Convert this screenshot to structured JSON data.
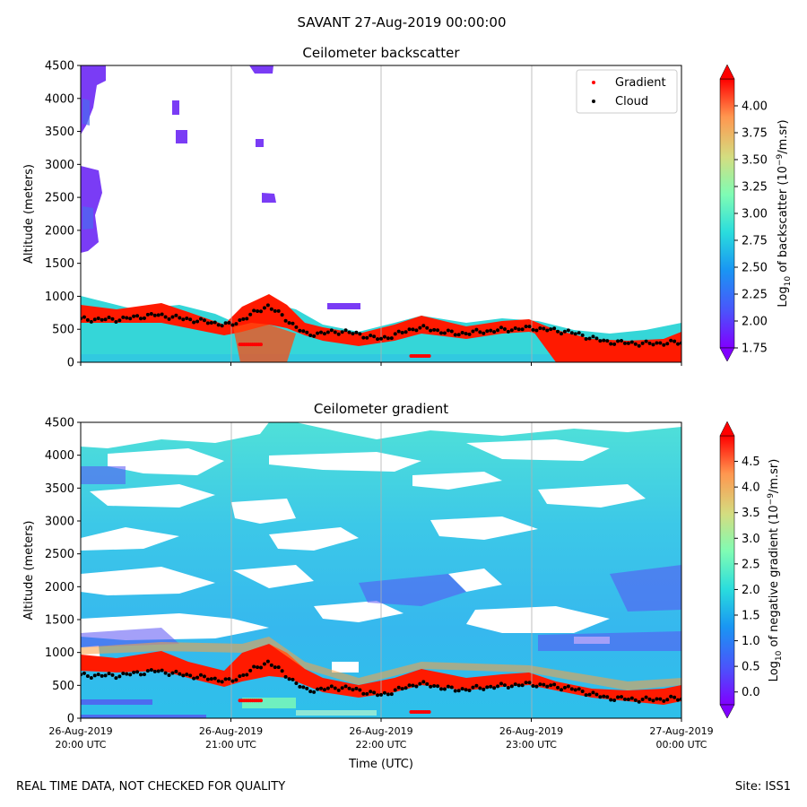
{
  "suptitle": "SAVANT 27-Aug-2019 00:00:00",
  "footer": {
    "left": "REAL TIME DATA, NOT CHECKED FOR QUALITY",
    "right": "Site: ISS1"
  },
  "colors": {
    "gradient_marker": "#ff0000",
    "cloud_marker": "#000000",
    "background": "#ffffff",
    "grid": "#b0b0b0"
  },
  "chart_data": [
    {
      "type": "heatmap",
      "title": "Ceilometer backscatter",
      "xlabel": "",
      "ylabel": "Altitude (meters)",
      "ylim": [
        0,
        4500
      ],
      "yticks": [
        0,
        500,
        1000,
        1500,
        2000,
        2500,
        3000,
        3500,
        4000,
        4500
      ],
      "xlim": [
        0,
        4
      ],
      "xticks": [
        0,
        1,
        2,
        3,
        4
      ],
      "xtick_labels": [],
      "grid": "vertical",
      "colorbar": {
        "label": "Log10 of backscatter (10^-9/m.sr)",
        "label_main": "Log",
        "label_sub": "10",
        "label_mid": " of backscatter (10",
        "label_sup": "−9",
        "label_end": "/m.sr)",
        "range": [
          1.75,
          4.25
        ],
        "ticks": [
          "1.75",
          "2.00",
          "2.25",
          "2.50",
          "2.75",
          "3.00",
          "3.25",
          "3.50",
          "3.75",
          "4.00"
        ],
        "extend": "both"
      },
      "legend": {
        "position": "top-right",
        "entries": [
          {
            "label": "Gradient",
            "color": "#ff0000"
          },
          {
            "label": "Cloud",
            "color": "#000000"
          }
        ]
      },
      "cloud_base": {
        "x": [
          0,
          0.25,
          0.5,
          0.75,
          1.0,
          1.25,
          1.5,
          1.75,
          2.0,
          2.25,
          2.5,
          2.75,
          3.0,
          3.25,
          3.5,
          3.75,
          4.0
        ],
        "y": [
          650,
          650,
          720,
          640,
          560,
          860,
          420,
          470,
          350,
          530,
          430,
          480,
          520,
          460,
          310,
          280,
          300
        ]
      },
      "gradient_segments": [
        {
          "x": [
            1.06,
            1.2
          ],
          "y": 270
        },
        {
          "x": [
            2.2,
            2.32
          ],
          "y": 95
        }
      ]
    },
    {
      "type": "heatmap",
      "title": "Ceilometer gradient",
      "xlabel": "Time (UTC)",
      "ylabel": "Altitude (meters)",
      "ylim": [
        0,
        4500
      ],
      "yticks": [
        0,
        500,
        1000,
        1500,
        2000,
        2500,
        3000,
        3500,
        4000,
        4500
      ],
      "xlim": [
        0,
        4
      ],
      "xticks": [
        0,
        1,
        2,
        3,
        4
      ],
      "xtick_labels": [
        {
          "date": "26-Aug-2019",
          "time": "20:00 UTC"
        },
        {
          "date": "26-Aug-2019",
          "time": "21:00 UTC"
        },
        {
          "date": "26-Aug-2019",
          "time": "22:00 UTC"
        },
        {
          "date": "26-Aug-2019",
          "time": "23:00 UTC"
        },
        {
          "date": "27-Aug-2019",
          "time": "00:00 UTC"
        }
      ],
      "grid": "vertical",
      "colorbar": {
        "label": "Log10 of negative gradient (10^-9/m.sr)",
        "label_main": "Log",
        "label_sub": "10",
        "label_mid": " of negative gradient (10",
        "label_sup": "−9",
        "label_end": "/m.sr)",
        "range": [
          -0.25,
          5.0
        ],
        "ticks": [
          "0.0",
          "0.5",
          "1.0",
          "1.5",
          "2.0",
          "2.5",
          "3.0",
          "3.5",
          "4.0",
          "4.5"
        ],
        "extend": "both"
      },
      "cloud_base": {
        "x": [
          0,
          0.25,
          0.5,
          0.75,
          1.0,
          1.25,
          1.5,
          1.75,
          2.0,
          2.25,
          2.5,
          2.75,
          3.0,
          3.25,
          3.5,
          3.75,
          4.0
        ],
        "y": [
          650,
          650,
          720,
          640,
          560,
          860,
          420,
          470,
          350,
          530,
          430,
          480,
          520,
          460,
          310,
          280,
          300
        ]
      },
      "gradient_segments": [
        {
          "x": [
            1.06,
            1.2
          ],
          "y": 270
        },
        {
          "x": [
            2.2,
            2.32
          ],
          "y": 95
        }
      ]
    }
  ]
}
